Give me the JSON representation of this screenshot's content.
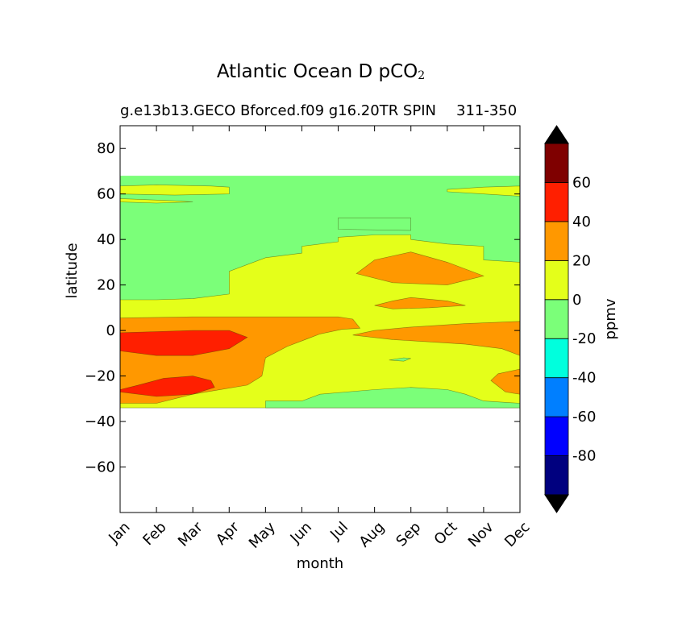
{
  "chart_data": {
    "type": "contourf",
    "title": "Atlantic Ocean D pCO",
    "title_subscript": "2",
    "subtitle_left": "g.e13b13.GECO Bforced.f09 g16.20TR SPIN",
    "subtitle_right": "311-350",
    "xlabel": "month",
    "ylabel": "latitude",
    "x_ticks": [
      "Jan",
      "Feb",
      "Mar",
      "Apr",
      "May",
      "Jun",
      "Jul",
      "Aug",
      "Sep",
      "Oct",
      "Nov",
      "Dec"
    ],
    "x_range": [
      1,
      12
    ],
    "ylim": [
      -80,
      90
    ],
    "y_ticks": [
      80,
      60,
      40,
      20,
      0,
      -20,
      -40,
      -60
    ],
    "y_tick_labels": [
      "80",
      "60",
      "40",
      "20",
      "0",
      "−20",
      "−40",
      "−60"
    ],
    "data_lat_range": [
      -34,
      68
    ],
    "colorbar": {
      "label": "ppmv",
      "levels": [
        -100,
        -80,
        -60,
        -40,
        -20,
        0,
        20,
        40,
        60,
        80
      ],
      "tick_labels": [
        "60",
        "40",
        "20",
        "0",
        "-20",
        "-40",
        "-60",
        "-80"
      ],
      "tick_values": [
        60,
        40,
        20,
        0,
        -20,
        -40,
        -60,
        -80
      ],
      "colors": [
        "#00007f",
        "#0000ff",
        "#007fff",
        "#00ffdd",
        "#7bff79",
        "#e4ff1a",
        "#ff9800",
        "#ff1f00",
        "#7f0000"
      ],
      "extend_colors": {
        "under": "#000000",
        "over": "#000000"
      }
    },
    "regions": [
      {
        "name": "north-band-0-20",
        "level": "0 to 20",
        "color": "#e4ff1a",
        "points": [
          [
            1,
            63.5
          ],
          [
            2,
            64
          ],
          [
            3.5,
            63.5
          ],
          [
            4,
            63
          ],
          [
            4,
            60
          ],
          [
            2.5,
            59.5
          ],
          [
            1,
            60
          ]
        ]
      },
      {
        "name": "north-small-band-0-20",
        "level": "0 to 20",
        "color": "#e4ff1a",
        "points": [
          [
            1,
            58
          ],
          [
            2.5,
            57
          ],
          [
            3,
            56.5
          ],
          [
            2,
            56
          ],
          [
            1,
            56.5
          ]
        ]
      },
      {
        "name": "north-right-band-0-20",
        "level": "0 to 20",
        "color": "#e4ff1a",
        "points": [
          [
            10,
            62
          ],
          [
            11,
            63
          ],
          [
            12,
            63.5
          ],
          [
            12,
            59
          ],
          [
            11,
            60
          ],
          [
            10,
            61
          ]
        ]
      },
      {
        "name": "subtropical-0-20",
        "level": "0 to 20",
        "color": "#e4ff1a",
        "points": [
          [
            1,
            13.5
          ],
          [
            2,
            13.5
          ],
          [
            3,
            14
          ],
          [
            4,
            16
          ],
          [
            4,
            26
          ],
          [
            5,
            32
          ],
          [
            6,
            34
          ],
          [
            6,
            37
          ],
          [
            7,
            39
          ],
          [
            7,
            41
          ],
          [
            8,
            42
          ],
          [
            9,
            42
          ],
          [
            9,
            40
          ],
          [
            10,
            38
          ],
          [
            11,
            37
          ],
          [
            11,
            31
          ],
          [
            12,
            30
          ],
          [
            12,
            -34
          ],
          [
            1,
            -34
          ]
        ]
      },
      {
        "name": "equatorial-20-40",
        "level": "20 to 40",
        "color": "#ff9800",
        "points": [
          [
            1,
            5.5
          ],
          [
            3,
            6
          ],
          [
            5,
            6
          ],
          [
            6,
            6
          ],
          [
            7,
            6
          ],
          [
            7.4,
            5
          ],
          [
            7.6,
            1
          ],
          [
            7.1,
            0.5
          ],
          [
            6.5,
            -1.5
          ],
          [
            5.6,
            -7
          ],
          [
            5,
            -12
          ],
          [
            4.9,
            -20
          ],
          [
            4.5,
            -24
          ],
          [
            3,
            -28
          ],
          [
            2,
            -32
          ],
          [
            1,
            -32
          ]
        ]
      },
      {
        "name": "equatorial-right-20-40",
        "level": "20 to 40",
        "color": "#ff9800",
        "points": [
          [
            7.4,
            -2
          ],
          [
            8.5,
            -4
          ],
          [
            9.5,
            -5
          ],
          [
            10.5,
            -6
          ],
          [
            11.5,
            -8
          ],
          [
            12,
            -11
          ],
          [
            12,
            4
          ],
          [
            10.5,
            3
          ],
          [
            9,
            1.5
          ],
          [
            8,
            0
          ]
        ]
      },
      {
        "name": "south-right-20-40",
        "level": "20 to 40",
        "color": "#ff9800",
        "points": [
          [
            12,
            -17
          ],
          [
            11.4,
            -19
          ],
          [
            11.2,
            -22
          ],
          [
            11.6,
            -27
          ],
          [
            12,
            -28
          ]
        ]
      },
      {
        "name": "subtrop-patch-20-40",
        "level": "20 to 40",
        "color": "#ff9800",
        "points": [
          [
            7.5,
            25
          ],
          [
            8,
            31
          ],
          [
            9,
            34.5
          ],
          [
            10,
            30
          ],
          [
            11,
            24
          ],
          [
            10,
            20
          ],
          [
            8.5,
            21
          ]
        ]
      },
      {
        "name": "subtrop-streak-20-40",
        "level": "20 to 40",
        "color": "#ff9800",
        "points": [
          [
            8,
            11
          ],
          [
            8.5,
            13
          ],
          [
            9,
            14.5
          ],
          [
            10,
            13
          ],
          [
            10.5,
            11
          ],
          [
            9.5,
            10
          ],
          [
            8.5,
            9.5
          ]
        ]
      },
      {
        "name": "west-equator-40-60",
        "level": "40 to 60",
        "color": "#ff1f00",
        "points": [
          [
            1,
            -1
          ],
          [
            2,
            -0.5
          ],
          [
            3,
            0
          ],
          [
            4,
            0
          ],
          [
            4.5,
            -3
          ],
          [
            4,
            -8
          ],
          [
            3,
            -11
          ],
          [
            2,
            -11
          ],
          [
            1,
            -9
          ]
        ]
      },
      {
        "name": "south-west-40-60",
        "level": "40 to 60",
        "color": "#ff1f00",
        "points": [
          [
            1,
            -26
          ],
          [
            1.5,
            -24
          ],
          [
            2.2,
            -21
          ],
          [
            3,
            -20
          ],
          [
            3.5,
            -22
          ],
          [
            3.6,
            -25
          ],
          [
            3,
            -28
          ],
          [
            2,
            -29
          ],
          [
            1,
            -27
          ]
        ]
      },
      {
        "name": "north-cold-0-to-minus20",
        "level": "-20 to 0",
        "color": "#7bff79",
        "points": [
          [
            7,
            49.5
          ],
          [
            9,
            49.5
          ],
          [
            9,
            44
          ],
          [
            7,
            44.5
          ]
        ]
      },
      {
        "name": "south-cold-0-to-minus20",
        "level": "-20 to 0",
        "color": "#7bff79",
        "points": [
          [
            5,
            -34
          ],
          [
            5,
            -31
          ],
          [
            6,
            -31
          ],
          [
            6.5,
            -28
          ],
          [
            8,
            -26
          ],
          [
            9,
            -25
          ],
          [
            10,
            -26
          ],
          [
            10.5,
            -28
          ],
          [
            11,
            -31
          ],
          [
            12,
            -32
          ],
          [
            12,
            -34
          ]
        ]
      },
      {
        "name": "tiny-cold-0-to-minus20",
        "level": "-20 to 0",
        "color": "#7bff79",
        "points": [
          [
            8.4,
            -13
          ],
          [
            8.8,
            -12
          ],
          [
            9,
            -12.3
          ],
          [
            8.8,
            -13.5
          ]
        ]
      }
    ]
  }
}
